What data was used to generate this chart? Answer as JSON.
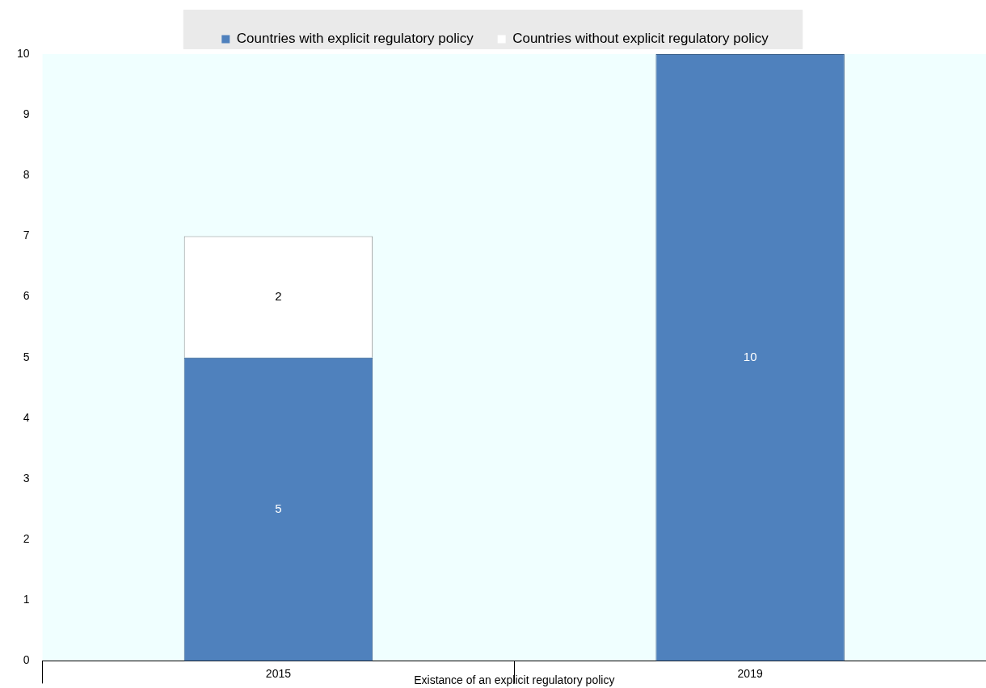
{
  "chart_data": {
    "type": "bar",
    "stacked": true,
    "xlabel": "Existance of an explicit regulatory policy",
    "categories": [
      "2015",
      "2019"
    ],
    "series": [
      {
        "name": "Countries with explicit regulatory policy",
        "color": "#4f81bd",
        "values": [
          5,
          10
        ]
      },
      {
        "name": "Countries without explicit regulatory policy",
        "color": "#ffffff",
        "values": [
          2,
          null
        ]
      }
    ],
    "ylim": [
      0,
      10
    ],
    "yticks": [
      0,
      1,
      2,
      3,
      4,
      5,
      6,
      7,
      8,
      9,
      10
    ],
    "grid": false,
    "legend": "top",
    "data_labels": true
  }
}
